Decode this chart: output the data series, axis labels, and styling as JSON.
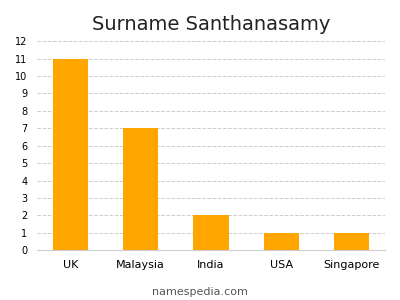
{
  "title": "Surname Santhanasamy",
  "categories": [
    "UK",
    "Malaysia",
    "India",
    "USA",
    "Singapore"
  ],
  "values": [
    11,
    7,
    2,
    1,
    1
  ],
  "bar_color": "#FFA500",
  "ylim": [
    0,
    12
  ],
  "yticks": [
    0,
    1,
    2,
    3,
    4,
    5,
    6,
    7,
    8,
    9,
    10,
    11,
    12
  ],
  "grid_color": "#cccccc",
  "background_color": "#ffffff",
  "title_fontsize": 14,
  "tick_fontsize": 7,
  "xlabel_fontsize": 8,
  "footer_text": "namespedia.com",
  "footer_fontsize": 8,
  "bar_width": 0.5
}
